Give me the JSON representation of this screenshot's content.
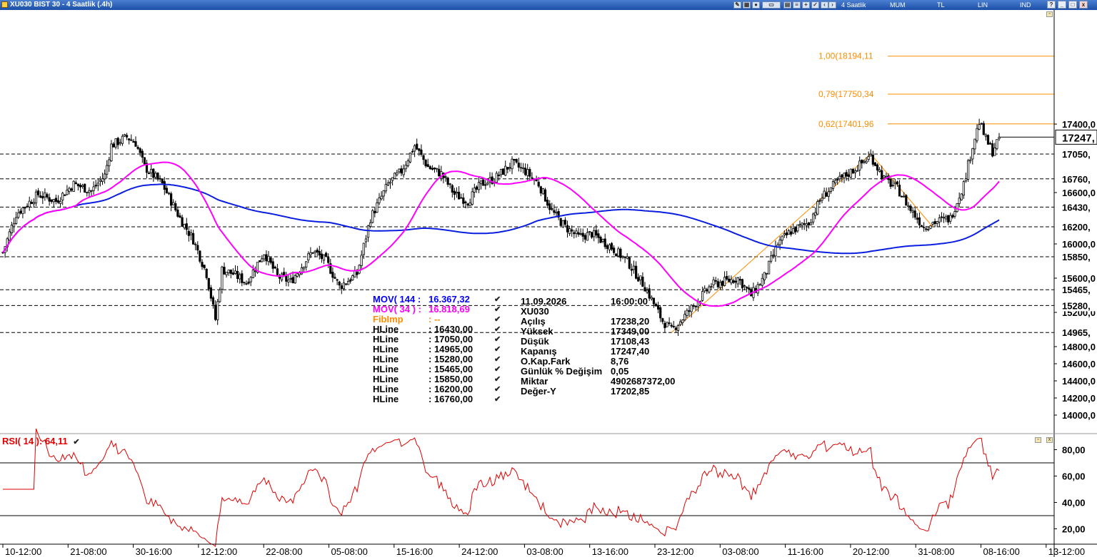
{
  "window": {
    "title": "XU030 BIST 30 - 4 Saatlik (.4h)",
    "modes": [
      "4 Saatlik",
      "MUM",
      "TL",
      "LIN",
      "IND"
    ],
    "buttons": [
      "?",
      "_",
      "□",
      "x"
    ]
  },
  "legend": [
    {
      "name": "MOV( 144 :",
      "value": "16.367,32",
      "color": "#0000ff"
    },
    {
      "name": "MOV( 34 ) :",
      "value": "16.818,69",
      "color": "#ff00ff"
    },
    {
      "name": "FibImp",
      "value": ": --",
      "color": "#ff8c00"
    },
    {
      "name": "HLine",
      "value": ": 16430,00",
      "color": "#000000"
    },
    {
      "name": "HLine",
      "value": ": 17050,00",
      "color": "#000000"
    },
    {
      "name": "HLine",
      "value": ": 14965,00",
      "color": "#000000"
    },
    {
      "name": "HLine",
      "value": ": 15280,00",
      "color": "#000000"
    },
    {
      "name": "HLine",
      "value": ": 15465,00",
      "color": "#000000"
    },
    {
      "name": "HLine",
      "value": ": 15850,00",
      "color": "#000000"
    },
    {
      "name": "HLine",
      "value": ": 16200,00",
      "color": "#000000"
    },
    {
      "name": "HLine",
      "value": ": 16760,00",
      "color": "#000000"
    }
  ],
  "info": {
    "date": "11.09.2026",
    "time": "16:00:00",
    "symbol": "XU030",
    "rows": [
      {
        "key": "Açılış",
        "value": "17238,20"
      },
      {
        "key": "Yüksek",
        "value": "17349,00"
      },
      {
        "key": "Düşük",
        "value": "17108,43"
      },
      {
        "key": "Kapanış",
        "value": "17247,40"
      },
      {
        "key": "O.Kap.Fark",
        "value": "8,76"
      },
      {
        "key": "Günlük % Değişim",
        "value": "0,05"
      },
      {
        "key": "Miktar",
        "value": "4902687372,00"
      },
      {
        "key": "Değer-Y",
        "value": "17202,85"
      }
    ]
  },
  "rsi": {
    "label": "RSI( 14 ): 64,11",
    "color": "#e00000"
  },
  "chart_data": [
    {
      "type": "candlestick",
      "symbol": "XU030",
      "timeframe": "4 Saatlik",
      "ylim": [
        13850,
        18700
      ],
      "price_axis_ticks": [
        "17400,0",
        "16600,0",
        "16000,0",
        "15600,0",
        "15200,0",
        "14800,0",
        "14600,0",
        "14400,0",
        "14200,0",
        "14000,0"
      ],
      "x_tick_labels": [
        "10-12:00",
        "21-08:00",
        "30-16:00",
        "12-12:00",
        "22-08:00",
        "05-08:00",
        "15-16:00",
        "24-12:00",
        "03-08:00",
        "13-16:00",
        "23-12:00",
        "03-08:00",
        "11-16:00",
        "20-12:00",
        "31-08:00",
        "08-16:00",
        "13-12:00"
      ],
      "last_price_label": "17247,",
      "last_close": 17247.4,
      "hlines": [
        {
          "value": 17050,
          "label": "17050,"
        },
        {
          "value": 16760,
          "label": "16760,"
        },
        {
          "value": 16430,
          "label": "16430,"
        },
        {
          "value": 16200,
          "label": "16200,"
        },
        {
          "value": 15850,
          "label": "15850,"
        },
        {
          "value": 15465,
          "label": "15465,"
        },
        {
          "value": 15280,
          "label": "15280,"
        },
        {
          "value": 14965,
          "label": "14965,"
        }
      ],
      "fib_levels": [
        {
          "value": 18194.11,
          "label": "1,00(18194,11"
        },
        {
          "value": 17750.34,
          "label": "0,79(17750,34"
        },
        {
          "value": 17401.96,
          "label": "0,62(17401,96"
        }
      ],
      "anchors": [
        [
          0,
          15900
        ],
        [
          6,
          16350
        ],
        [
          16,
          16580
        ],
        [
          24,
          16500
        ],
        [
          32,
          16700
        ],
        [
          40,
          16620
        ],
        [
          46,
          16800
        ],
        [
          49,
          17150
        ],
        [
          56,
          17250
        ],
        [
          60,
          17180
        ],
        [
          64,
          16900
        ],
        [
          72,
          16700
        ],
        [
          80,
          16300
        ],
        [
          86,
          16050
        ],
        [
          92,
          15650
        ],
        [
          96,
          15120
        ],
        [
          99,
          15700
        ],
        [
          104,
          15650
        ],
        [
          110,
          15550
        ],
        [
          118,
          15900
        ],
        [
          124,
          15620
        ],
        [
          130,
          15560
        ],
        [
          140,
          15920
        ],
        [
          146,
          15800
        ],
        [
          152,
          15500
        ],
        [
          160,
          15650
        ],
        [
          166,
          16300
        ],
        [
          174,
          16700
        ],
        [
          180,
          16850
        ],
        [
          186,
          17150
        ],
        [
          192,
          16900
        ],
        [
          198,
          16820
        ],
        [
          204,
          16580
        ],
        [
          210,
          16500
        ],
        [
          216,
          16700
        ],
        [
          222,
          16760
        ],
        [
          230,
          16940
        ],
        [
          236,
          16850
        ],
        [
          242,
          16700
        ],
        [
          248,
          16380
        ],
        [
          254,
          16200
        ],
        [
          260,
          16080
        ],
        [
          266,
          16120
        ],
        [
          274,
          15980
        ],
        [
          282,
          15800
        ],
        [
          290,
          15500
        ],
        [
          298,
          15100
        ],
        [
          302,
          14990
        ],
        [
          306,
          15100
        ],
        [
          312,
          15280
        ],
        [
          320,
          15520
        ],
        [
          326,
          15560
        ],
        [
          332,
          15600
        ],
        [
          338,
          15400
        ],
        [
          344,
          15620
        ],
        [
          350,
          16000
        ],
        [
          356,
          16150
        ],
        [
          364,
          16250
        ],
        [
          370,
          16550
        ],
        [
          378,
          16750
        ],
        [
          386,
          16900
        ],
        [
          392,
          17030
        ],
        [
          398,
          16760
        ],
        [
          404,
          16650
        ],
        [
          410,
          16400
        ],
        [
          416,
          16200
        ],
        [
          420,
          16250
        ],
        [
          428,
          16300
        ],
        [
          434,
          16700
        ],
        [
          438,
          17150
        ],
        [
          441,
          17420
        ],
        [
          444,
          17220
        ],
        [
          447,
          17080
        ],
        [
          450,
          17247
        ]
      ],
      "rsi_ylim": [
        10,
        90
      ],
      "rsi_ticks": [
        "80,00",
        "60,00",
        "40,00",
        "20,00"
      ],
      "rsi_bands": [
        70,
        30
      ],
      "rsi_last": 64.11
    }
  ]
}
